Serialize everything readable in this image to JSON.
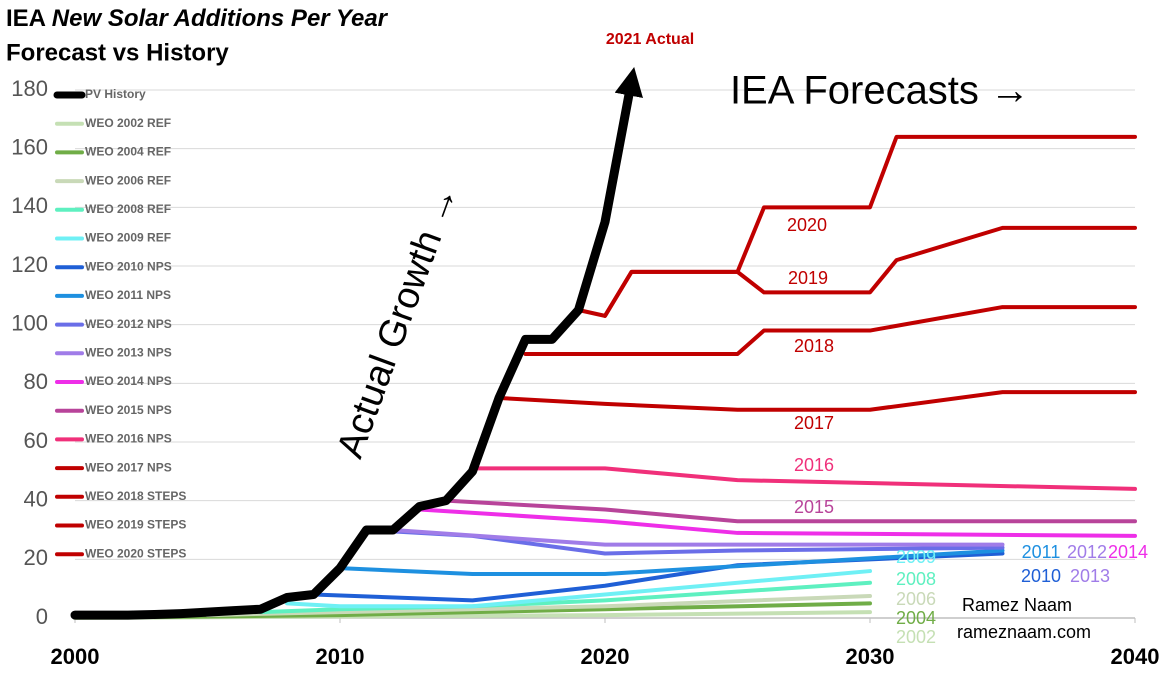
{
  "chart_data": {
    "type": "line",
    "title": {
      "lead": "IEA",
      "rest": "New Solar Additions Per Year"
    },
    "subtitle": "Forecast vs History",
    "xlim": [
      2000,
      2040
    ],
    "xticks": [
      2000,
      2010,
      2020,
      2030,
      2040
    ],
    "ylim": [
      0,
      180
    ],
    "yticks": [
      0,
      20,
      40,
      60,
      80,
      100,
      120,
      140,
      160,
      180
    ],
    "grid": true,
    "legend": "left",
    "series": [
      {
        "name": "PV History",
        "color": "#000000",
        "x": [
          2000,
          2001,
          2002,
          2003,
          2004,
          2005,
          2006,
          2007,
          2008,
          2009,
          2010,
          2011,
          2012,
          2013,
          2014,
          2015,
          2016,
          2017,
          2018,
          2019,
          2020,
          2021
        ],
        "values": [
          1,
          1,
          1,
          1.2,
          1.5,
          2,
          2.5,
          3,
          7,
          8,
          17,
          30,
          30,
          38,
          40,
          50,
          75,
          95,
          95,
          105,
          135,
          183
        ]
      },
      {
        "name": "WEO 2002 REF",
        "color": "#c5e0b4",
        "x": [
          2000,
          2010,
          2020,
          2030
        ],
        "values": [
          0,
          0.5,
          1,
          2
        ]
      },
      {
        "name": "WEO 2004 REF",
        "color": "#70ad47",
        "x": [
          2003,
          2010,
          2020,
          2030
        ],
        "values": [
          0.3,
          1,
          3,
          5
        ]
      },
      {
        "name": "WEO 2006 REF",
        "color": "#c9d9b8",
        "x": [
          2005,
          2010,
          2020,
          2030
        ],
        "values": [
          1,
          2,
          4,
          7.5
        ]
      },
      {
        "name": "WEO 2008 REF",
        "color": "#5ef0c0",
        "x": [
          2007,
          2010,
          2015,
          2020,
          2030
        ],
        "values": [
          2,
          3,
          4,
          6,
          12
        ]
      },
      {
        "name": "WEO 2009 REF",
        "color": "#6ff0f5",
        "x": [
          2008,
          2010,
          2015,
          2020,
          2030
        ],
        "values": [
          5,
          4,
          4,
          8,
          16
        ]
      },
      {
        "name": "WEO 2010 NPS",
        "color": "#1f5fd6",
        "x": [
          2009,
          2015,
          2020,
          2025,
          2035
        ],
        "values": [
          8,
          6,
          11,
          18,
          22
        ]
      },
      {
        "name": "WEO 2011 NPS",
        "color": "#1e90e0",
        "x": [
          2010,
          2015,
          2020,
          2035
        ],
        "values": [
          17,
          15,
          15,
          23
        ]
      },
      {
        "name": "WEO 2012 NPS",
        "color": "#6a6ee8",
        "x": [
          2011,
          2015,
          2020,
          2025,
          2035
        ],
        "values": [
          30,
          28,
          22,
          23,
          24
        ]
      },
      {
        "name": "WEO 2013 NPS",
        "color": "#a07ce8",
        "x": [
          2012,
          2020,
          2035
        ],
        "values": [
          30,
          25,
          25
        ]
      },
      {
        "name": "WEO 2014 NPS",
        "color": "#ee2ee8",
        "x": [
          2013,
          2020,
          2025,
          2040
        ],
        "values": [
          37,
          33,
          29,
          28
        ]
      },
      {
        "name": "WEO 2015 NPS",
        "color": "#b8449a",
        "x": [
          2014,
          2020,
          2025,
          2040
        ],
        "values": [
          40,
          37,
          33,
          33
        ]
      },
      {
        "name": "WEO 2016 NPS",
        "color": "#f0307a",
        "x": [
          2015,
          2020,
          2025,
          2040
        ],
        "values": [
          51,
          51,
          47,
          44
        ]
      },
      {
        "name": "WEO 2017 NPS",
        "color": "#c00000",
        "x": [
          2016,
          2020,
          2025,
          2030,
          2035,
          2040
        ],
        "values": [
          75,
          73,
          71,
          71,
          77,
          77
        ]
      },
      {
        "name": "WEO 2018 STEPS",
        "color": "#c00000",
        "x": [
          2017,
          2025,
          2026,
          2030,
          2035,
          2040
        ],
        "values": [
          90,
          90,
          98,
          98,
          106,
          106
        ]
      },
      {
        "name": "WEO 2019 STEPS",
        "color": "#c00000",
        "x": [
          2019,
          2020,
          2021,
          2025,
          2026,
          2030,
          2031,
          2035,
          2040
        ],
        "values": [
          105,
          103,
          118,
          118,
          111,
          111,
          122,
          133,
          133
        ]
      },
      {
        "name": "WEO 2020 STEPS",
        "color": "#c00000",
        "x": [
          2020,
          2021,
          2025,
          2026,
          2030,
          2031,
          2040
        ],
        "values": [
          103,
          118,
          118,
          140,
          140,
          164,
          164
        ]
      }
    ],
    "annotations": [
      {
        "text": "2021 Actual",
        "color": "#c00000"
      },
      {
        "text": "IEA Forecasts →",
        "color": "#000000"
      },
      {
        "text": "Actual Growth →",
        "color": "#000000"
      },
      {
        "text": "2020",
        "color": "#c00000"
      },
      {
        "text": "2019",
        "color": "#c00000"
      },
      {
        "text": "2018",
        "color": "#c00000"
      },
      {
        "text": "2017",
        "color": "#c00000"
      },
      {
        "text": "2016",
        "color": "#f0307a"
      },
      {
        "text": "2015",
        "color": "#b8449a"
      },
      {
        "text": "2009",
        "color": "#6ff0f5"
      },
      {
        "text": "2008",
        "color": "#5ef0c0"
      },
      {
        "text": "2006",
        "color": "#c9d9b8"
      },
      {
        "text": "2004",
        "color": "#70ad47"
      },
      {
        "text": "2002",
        "color": "#c5e0b4"
      },
      {
        "text": "2011",
        "color": "#1e90e0"
      },
      {
        "text": "2012",
        "color": "#a07ce8"
      },
      {
        "text": "2014",
        "color": "#ee2ee8"
      },
      {
        "text": "2010",
        "color": "#1f5fd6"
      },
      {
        "text": "2013",
        "color": "#a07ce8"
      },
      {
        "text": "Ramez Naam",
        "color": "#000000"
      },
      {
        "text": "rameznaam.com",
        "color": "#000000"
      }
    ]
  }
}
